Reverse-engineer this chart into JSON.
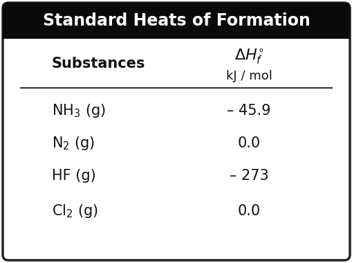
{
  "title": "Standard Heats of Formation",
  "title_bg": "#0a0a0a",
  "title_color": "#ffffff",
  "title_fontsize": 17,
  "header_substance": "Substances",
  "header_units": "kJ / mol",
  "rows": [
    {
      "substance": "NH",
      "sub": "3",
      "suffix": " (g)",
      "value": "– 45.9"
    },
    {
      "substance": "N",
      "sub": "2",
      "suffix": " (g)",
      "value": "0.0"
    },
    {
      "substance": "HF",
      "sub": "",
      "suffix": " (g)",
      "value": "– 273"
    },
    {
      "substance": "Cl",
      "sub": "2",
      "suffix": " (g)",
      "value": "0.0"
    }
  ],
  "border_color": "#222222",
  "line_color": "#333333",
  "bg_color": "#ffffff",
  "text_color": "#111111",
  "body_fontsize": 15,
  "header_fontsize": 15
}
